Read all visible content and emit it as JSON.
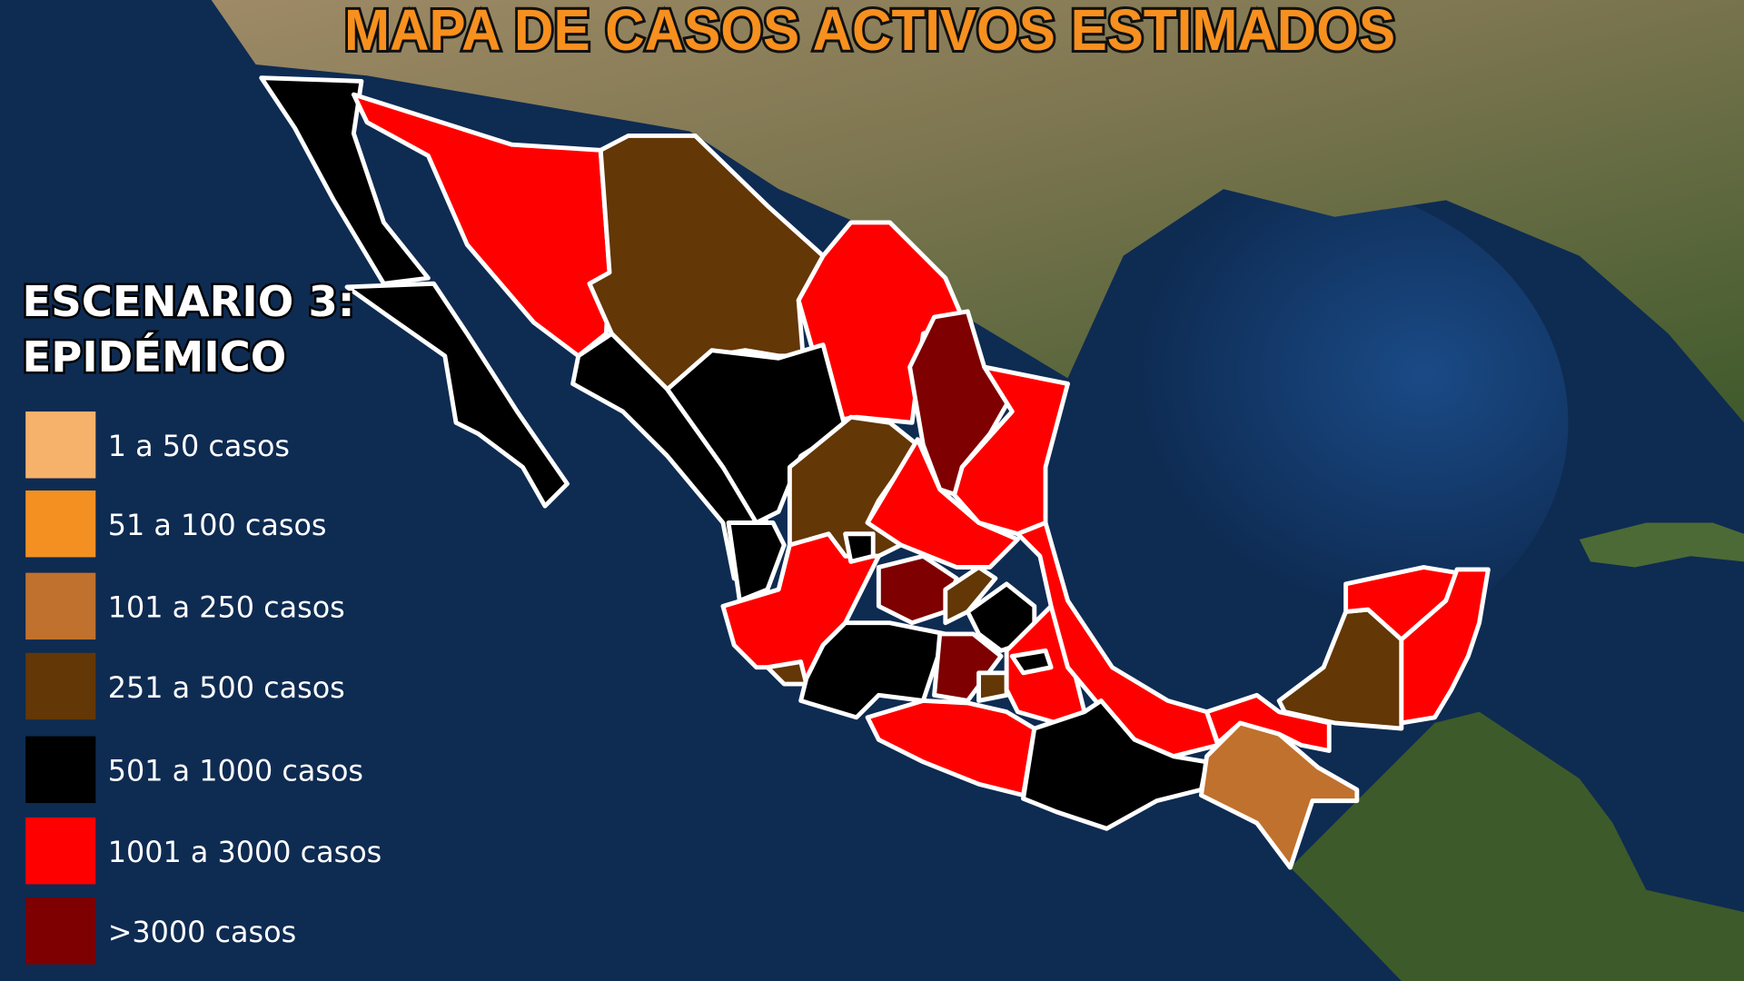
{
  "title": "MAPA DE CASOS ACTIVOS ESTIMADOS",
  "scenario": {
    "line1": "ESCENARIO 3:",
    "line2": "EPIDÉMICO"
  },
  "legend": [
    {
      "label": "1 a 50 casos",
      "color": "#f6b26b"
    },
    {
      "label": "51 a 100 casos",
      "color": "#f39021"
    },
    {
      "label": "101 a 250 casos",
      "color": "#c0712d"
    },
    {
      "label": "251 a 500 casos",
      "color": "#633706"
    },
    {
      "label": "501 a 1000 casos",
      "color": "#000000"
    },
    {
      "label": "1001 a 3000 casos",
      "color": "#ff0000"
    },
    {
      "label": ">3000 casos",
      "color": "#7e0000"
    }
  ],
  "states": [
    {
      "state": "Baja California",
      "level": 4
    },
    {
      "state": "Baja California Sur",
      "level": 4
    },
    {
      "state": "Sonora",
      "level": 5
    },
    {
      "state": "Chihuahua",
      "level": 3
    },
    {
      "state": "Coahuila",
      "level": 5
    },
    {
      "state": "Nuevo León",
      "level": 6
    },
    {
      "state": "Tamaulipas",
      "level": 5
    },
    {
      "state": "Sinaloa",
      "level": 4
    },
    {
      "state": "Durango",
      "level": 4
    },
    {
      "state": "Zacatecas",
      "level": 3
    },
    {
      "state": "San Luis Potosí",
      "level": 5
    },
    {
      "state": "Nayarit",
      "level": 4
    },
    {
      "state": "Jalisco",
      "level": 5
    },
    {
      "state": "Colima",
      "level": 3
    },
    {
      "state": "Aguascalientes",
      "level": 4
    },
    {
      "state": "Guanajuato",
      "level": 6
    },
    {
      "state": "Querétaro",
      "level": 3
    },
    {
      "state": "Hidalgo",
      "level": 4
    },
    {
      "state": "Michoacán",
      "level": 4
    },
    {
      "state": "Estado de México",
      "level": 6
    },
    {
      "state": "Ciudad de México",
      "level": 3
    },
    {
      "state": "Puebla",
      "level": 5
    },
    {
      "state": "Tlaxcala",
      "level": 4
    },
    {
      "state": "Veracruz",
      "level": 5
    },
    {
      "state": "Guerrero",
      "level": 5
    },
    {
      "state": "Oaxaca",
      "level": 4
    },
    {
      "state": "Chiapas",
      "level": 2
    },
    {
      "state": "Tabasco",
      "level": 5
    },
    {
      "state": "Campeche",
      "level": 3
    },
    {
      "state": "Yucatán",
      "level": 5
    },
    {
      "state": "Quintana Roo",
      "level": 5
    }
  ]
}
